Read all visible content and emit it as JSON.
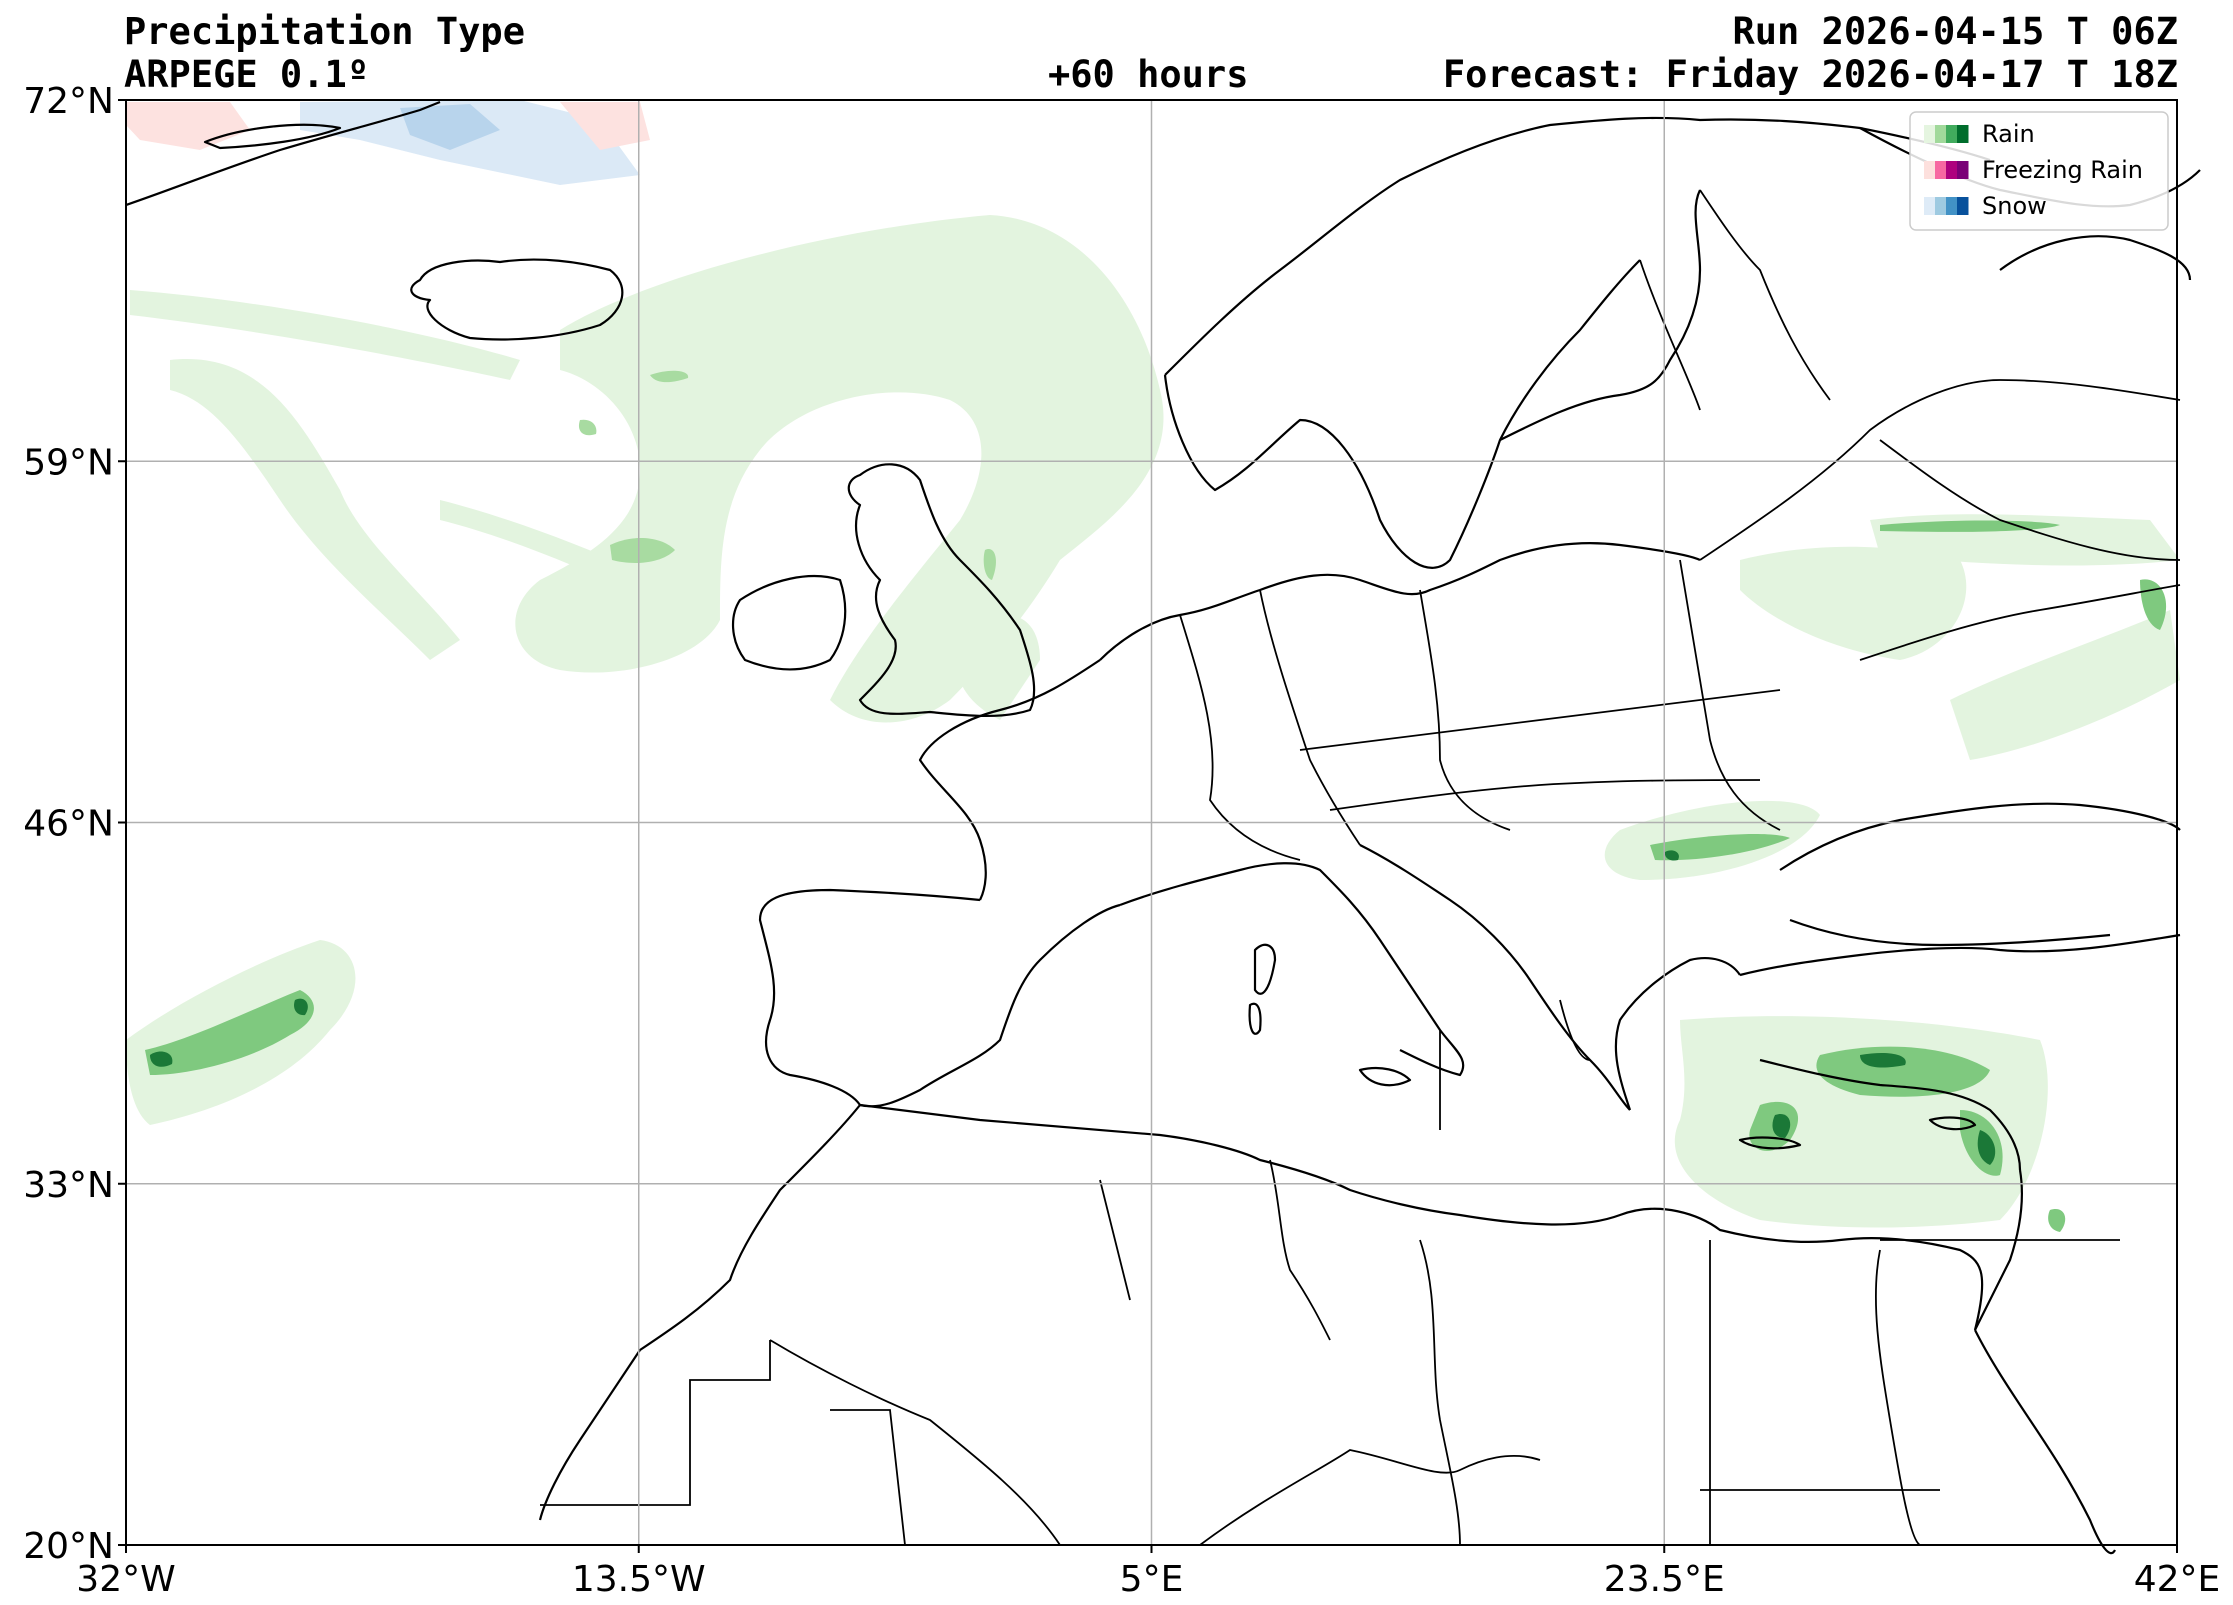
{
  "header": {
    "title": "Precipitation Type",
    "model": "ARPEGE 0.1º",
    "lead": "+60 hours",
    "run": "Run 2026-04-15 T 06Z",
    "forecast": "Forecast: Friday 2026-04-17 T 18Z"
  },
  "map": {
    "lon_range": [
      -32,
      42
    ],
    "lat_range": [
      20,
      72
    ],
    "lon_ticks": [
      {
        "value": -32,
        "label": "32°W"
      },
      {
        "value": -13.5,
        "label": "13.5°W"
      },
      {
        "value": 5,
        "label": "5°E"
      },
      {
        "value": 23.5,
        "label": "23.5°E"
      },
      {
        "value": 42,
        "label": "42°E"
      }
    ],
    "lat_ticks": [
      {
        "value": 72,
        "label": "72°N"
      },
      {
        "value": 59,
        "label": "59°N"
      },
      {
        "value": 46,
        "label": "46°N"
      },
      {
        "value": 33,
        "label": "33°N"
      },
      {
        "value": 20,
        "label": "20°N"
      }
    ],
    "grid": true
  },
  "legend": {
    "placement": "top-right",
    "items": [
      {
        "label": "Rain",
        "colors": [
          "#e5f5e0",
          "#a1d99b",
          "#41ab5d",
          "#006d2c"
        ]
      },
      {
        "label": "Freezing Rain",
        "colors": [
          "#fde0dd",
          "#f768a1",
          "#ae017e",
          "#7a0177"
        ]
      },
      {
        "label": "Snow",
        "colors": [
          "#deebf7",
          "#9ecae1",
          "#4292c6",
          "#08519c"
        ]
      }
    ]
  }
}
